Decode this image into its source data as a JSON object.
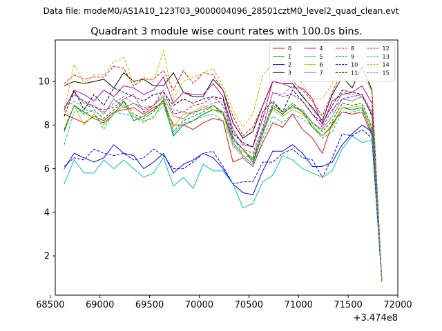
{
  "chart_data": {
    "type": "line",
    "suptitle": "Data file: modeM0/AS1A10_123T03_9000004096_28501cztM0_level2_quad_clean.evt",
    "title": "Quadrant 3 module wise count rates with 100.0s bins.",
    "xlabel": "",
    "ylabel": "",
    "x_offset_label": "+3.474e8",
    "xlim": [
      68550,
      72000
    ],
    "ylim": [
      0.2,
      11.9
    ],
    "xticks": [
      68500,
      69000,
      69500,
      70000,
      70500,
      71000,
      71500,
      72000
    ],
    "xtick_labels": [
      "68500",
      "69000",
      "69500",
      "70000",
      "70500",
      "71000",
      "71500",
      "72000"
    ],
    "yticks": [
      2,
      4,
      6,
      8,
      10
    ],
    "ytick_labels": [
      "2",
      "4",
      "6",
      "8",
      "10"
    ],
    "grid": false,
    "legend_placement": "upper-right",
    "legend_columns": 4,
    "x": [
      68640,
      68740,
      68840,
      68940,
      69040,
      69140,
      69240,
      69340,
      69440,
      69540,
      69640,
      69740,
      69840,
      69940,
      70040,
      70140,
      70240,
      70340,
      70440,
      70540,
      70640,
      70740,
      70840,
      70940,
      71040,
      71140,
      71240,
      71340,
      71440,
      71540,
      71640,
      71740,
      71840
    ],
    "series": [
      {
        "name": "0",
        "color": "#ff0000",
        "dash": false,
        "values": [
          8.5,
          8.3,
          8.1,
          8.4,
          8.2,
          8.6,
          8.7,
          8.8,
          8.5,
          8.8,
          9.0,
          8.0,
          8.0,
          7.8,
          8.1,
          8.3,
          8.2,
          6.3,
          6.5,
          6.1,
          7.2,
          8.1,
          7.9,
          8.5,
          7.8,
          7.4,
          6.7,
          8.1,
          8.6,
          8.5,
          8.6,
          7.5,
          0.8
        ]
      },
      {
        "name": "1",
        "color": "#008000",
        "dash": false,
        "values": [
          7.7,
          8.9,
          8.6,
          8.3,
          8.1,
          8.5,
          9.1,
          8.2,
          8.4,
          8.7,
          9.1,
          7.5,
          8.0,
          8.2,
          8.5,
          8.7,
          8.6,
          7.4,
          6.9,
          6.3,
          7.6,
          8.8,
          8.5,
          8.9,
          8.6,
          7.9,
          7.5,
          8.0,
          8.8,
          8.7,
          8.8,
          7.6,
          0.8
        ]
      },
      {
        "name": "2",
        "color": "#0000ff",
        "dash": false,
        "values": [
          6.0,
          6.7,
          6.5,
          6.3,
          6.5,
          7.1,
          6.7,
          6.6,
          6.0,
          6.3,
          6.7,
          5.8,
          6.2,
          6.4,
          6.7,
          6.5,
          6.0,
          5.3,
          4.9,
          4.8,
          5.9,
          6.8,
          6.8,
          7.1,
          6.7,
          6.1,
          6.1,
          6.3,
          7.1,
          7.6,
          8.0,
          7.7,
          0.8
        ]
      },
      {
        "name": "3",
        "color": "#000000",
        "dash": false,
        "values": [
          9.8,
          10.0,
          9.9,
          10.0,
          10.1,
          9.7,
          10.4,
          10.0,
          10.1,
          9.8,
          9.8,
          10.4,
          9.5,
          9.3,
          9.3,
          10.1,
          9.6,
          8.1,
          7.4,
          7.7,
          8.9,
          10.0,
          9.9,
          9.9,
          9.3,
          8.8,
          8.2,
          9.4,
          10.2,
          9.7,
          10.7,
          9.6,
          0.8
        ]
      },
      {
        "name": "4",
        "color": "#bf00bf",
        "dash": false,
        "values": [
          8.7,
          9.6,
          9.4,
          9.1,
          9.6,
          9.3,
          9.8,
          9.7,
          9.4,
          9.6,
          10.2,
          9.0,
          9.5,
          9.4,
          9.4,
          9.9,
          9.3,
          7.8,
          7.1,
          7.0,
          8.3,
          10.0,
          9.9,
          9.7,
          9.7,
          9.2,
          8.0,
          9.1,
          9.4,
          9.5,
          9.8,
          9.0,
          0.8
        ]
      },
      {
        "name": "5",
        "color": "#00bfbf",
        "dash": false,
        "values": [
          5.3,
          6.4,
          5.8,
          5.8,
          6.4,
          6.0,
          6.4,
          6.0,
          5.6,
          5.8,
          6.5,
          5.2,
          5.6,
          5.1,
          6.2,
          5.9,
          5.9,
          5.3,
          4.2,
          4.4,
          5.4,
          5.7,
          6.6,
          6.4,
          6.0,
          5.8,
          5.6,
          5.9,
          6.9,
          7.5,
          7.2,
          7.3,
          0.8
        ]
      },
      {
        "name": "6",
        "color": "#bfbf00",
        "dash": false,
        "values": [
          7.8,
          8.9,
          8.0,
          8.5,
          8.0,
          8.5,
          8.9,
          8.4,
          8.2,
          8.3,
          9.2,
          7.9,
          8.5,
          8.6,
          8.9,
          8.7,
          8.5,
          7.0,
          6.8,
          6.5,
          7.8,
          8.7,
          8.4,
          8.7,
          8.5,
          8.0,
          7.5,
          7.9,
          8.8,
          8.8,
          8.9,
          7.8,
          0.8
        ]
      },
      {
        "name": "7",
        "color": "#808080",
        "dash": false,
        "values": [
          8.8,
          9.5,
          9.0,
          8.9,
          8.5,
          9.2,
          8.8,
          9.0,
          8.7,
          8.9,
          9.3,
          8.4,
          8.3,
          8.6,
          8.7,
          8.9,
          8.6,
          7.2,
          6.6,
          6.2,
          7.6,
          8.9,
          8.6,
          8.8,
          8.7,
          8.1,
          7.8,
          8.4,
          9.2,
          9.1,
          9.3,
          8.5,
          0.8
        ]
      },
      {
        "name": "8",
        "color": "#ff0000",
        "dash": true,
        "values": [
          9.9,
          10.3,
          10.1,
          10.2,
          10.2,
          10.7,
          10.6,
          9.8,
          10.1,
          10.1,
          10.5,
          9.6,
          10.5,
          9.9,
          10.4,
          10.3,
          9.6,
          8.4,
          7.5,
          7.9,
          8.9,
          10.0,
          10.2,
          10.0,
          9.6,
          9.1,
          8.4,
          9.5,
          10.5,
          10.0,
          10.6,
          9.5,
          0.8
        ]
      },
      {
        "name": "9",
        "color": "#008000",
        "dash": true,
        "values": [
          7.8,
          8.9,
          8.5,
          8.7,
          8.3,
          8.7,
          9.1,
          8.5,
          8.3,
          8.6,
          9.2,
          7.7,
          8.2,
          8.4,
          8.6,
          8.9,
          8.5,
          7.3,
          6.9,
          6.4,
          7.7,
          9.0,
          8.6,
          9.0,
          8.6,
          8.1,
          7.7,
          8.2,
          9.0,
          8.9,
          9.0,
          7.9,
          0.8
        ]
      },
      {
        "name": "10",
        "color": "#0000ff",
        "dash": true,
        "values": [
          6.1,
          6.5,
          6.4,
          6.9,
          6.7,
          6.6,
          6.7,
          6.4,
          6.5,
          6.9,
          6.6,
          6.0,
          6.0,
          6.3,
          6.7,
          6.8,
          6.1,
          5.3,
          5.4,
          5.4,
          6.3,
          6.3,
          6.7,
          6.9,
          6.5,
          6.4,
          5.6,
          6.5,
          7.6,
          7.5,
          7.8,
          7.4,
          0.8
        ]
      },
      {
        "name": "11",
        "color": "#000000",
        "dash": true,
        "values": [
          8.4,
          9.6,
          8.7,
          9.4,
          8.9,
          9.7,
          9.5,
          9.3,
          9.1,
          9.4,
          9.5,
          8.9,
          9.2,
          9.0,
          9.2,
          9.3,
          9.2,
          7.6,
          7.2,
          7.0,
          8.6,
          9.1,
          8.6,
          9.6,
          9.1,
          8.5,
          8.1,
          8.9,
          9.6,
          9.5,
          9.4,
          8.4,
          0.8
        ]
      },
      {
        "name": "12",
        "color": "#bf00bf",
        "dash": true,
        "values": [
          8.8,
          9.4,
          9.1,
          8.8,
          8.7,
          8.8,
          9.2,
          9.4,
          8.6,
          8.9,
          9.6,
          8.5,
          8.6,
          8.9,
          9.0,
          9.3,
          8.9,
          7.4,
          6.9,
          6.7,
          7.9,
          9.5,
          9.3,
          9.4,
          9.1,
          8.5,
          7.9,
          8.7,
          9.2,
          9.3,
          9.4,
          8.6,
          0.8
        ]
      },
      {
        "name": "13",
        "color": "#00bfbf",
        "dash": true,
        "values": [
          7.1,
          8.6,
          8.7,
          8.6,
          7.8,
          8.6,
          8.5,
          8.4,
          8.1,
          8.4,
          8.9,
          7.6,
          8.1,
          8.2,
          8.4,
          8.5,
          8.2,
          7.1,
          6.5,
          6.1,
          7.4,
          8.4,
          8.1,
          8.5,
          8.3,
          7.9,
          7.4,
          7.7,
          8.6,
          8.6,
          8.7,
          7.7,
          0.8
        ]
      },
      {
        "name": "14",
        "color": "#bfbf00",
        "dash": true,
        "values": [
          8.6,
          10.8,
          9.9,
          10.3,
          10.3,
          10.9,
          11.1,
          9.9,
          10.2,
          10.0,
          11.4,
          9.2,
          10.0,
          10.2,
          10.4,
          10.6,
          9.8,
          8.7,
          7.9,
          8.5,
          10.3,
          10.8,
          10.3,
          10.4,
          9.9,
          9.2,
          9.2,
          9.9,
          10.9,
          10.2,
          10.6,
          9.5,
          0.8
        ]
      },
      {
        "name": "15",
        "color": "#808080",
        "dash": true,
        "values": [
          8.7,
          9.1,
          8.8,
          8.9,
          8.6,
          9.0,
          9.3,
          9.0,
          8.8,
          8.9,
          9.4,
          8.7,
          8.6,
          8.5,
          8.8,
          9.0,
          9.1,
          7.5,
          6.6,
          6.5,
          7.8,
          9.5,
          9.4,
          9.8,
          9.4,
          8.7,
          8.2,
          8.6,
          9.5,
          9.4,
          9.3,
          8.6,
          0.8
        ]
      }
    ]
  }
}
